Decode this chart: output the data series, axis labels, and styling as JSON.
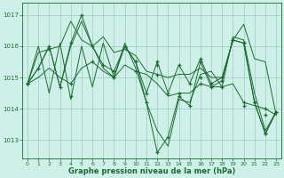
{
  "title": "Graphe pression niveau de la mer (hPa)",
  "bg_color": "#cff0e8",
  "grid_color": "#99ccbb",
  "line_color": "#1a6b30",
  "ylim": [
    1012.4,
    1017.4
  ],
  "yticks": [
    1013,
    1014,
    1015,
    1016,
    1017
  ],
  "xlim": [
    -0.5,
    23.5
  ],
  "xticks": [
    0,
    1,
    2,
    3,
    4,
    5,
    6,
    7,
    8,
    9,
    10,
    11,
    12,
    13,
    14,
    15,
    16,
    17,
    18,
    19,
    20,
    21,
    22,
    23
  ],
  "series": [
    [
      1014.8,
      1015.8,
      1015.9,
      1016.0,
      1016.8,
      1016.2,
      1016.0,
      1016.3,
      1015.8,
      1015.9,
      1015.7,
      1015.2,
      1015.1,
      1015.0,
      1015.1,
      1015.1,
      1015.3,
      1015.0,
      1015.0,
      1016.2,
      1016.7,
      1015.6,
      1015.5,
      1013.8
    ],
    [
      1014.8,
      1015.0,
      1015.3,
      1015.0,
      1014.8,
      1015.3,
      1015.5,
      1015.2,
      1015.0,
      1015.4,
      1015.2,
      1015.1,
      1014.8,
      1014.4,
      1014.5,
      1014.5,
      1014.8,
      1014.7,
      1014.7,
      1014.8,
      1014.2,
      1014.1,
      1014.0,
      1013.8
    ],
    [
      1014.8,
      1016.0,
      1014.5,
      1016.1,
      1014.3,
      1016.0,
      1014.7,
      1016.1,
      1015.0,
      1016.1,
      1015.3,
      1014.2,
      1013.3,
      1012.8,
      1014.3,
      1014.2,
      1015.1,
      1015.2,
      1014.7,
      1016.3,
      1016.2,
      1014.5,
      1013.3,
      1013.9
    ],
    [
      1014.8,
      1015.3,
      1016.0,
      1014.7,
      1016.1,
      1017.0,
      1016.0,
      1015.4,
      1015.2,
      1016.0,
      1015.5,
      1014.2,
      1012.6,
      1013.1,
      1014.4,
      1014.1,
      1015.5,
      1014.7,
      1014.9,
      1016.2,
      1016.1,
      1014.2,
      1013.2,
      1013.9
    ],
    [
      1014.8,
      1015.3,
      1016.0,
      1014.7,
      1016.0,
      1016.8,
      1016.0,
      1015.3,
      1015.0,
      1016.0,
      1015.5,
      1014.5,
      1015.5,
      1014.5,
      1015.4,
      1014.8,
      1015.6,
      1014.8,
      1015.0,
      1016.2,
      1016.1,
      1014.2,
      1013.2,
      1013.9
    ]
  ],
  "markers": [
    [
      [
        0,
        1014.8
      ],
      [
        1,
        1015.3
      ],
      [
        2,
        1016.0
      ],
      [
        3,
        1014.7
      ],
      [
        4,
        1016.1
      ],
      [
        5,
        1017.0
      ],
      [
        6,
        1016.0
      ],
      [
        7,
        1015.4
      ],
      [
        8,
        1015.2
      ],
      [
        9,
        1016.0
      ],
      [
        10,
        1015.5
      ],
      [
        11,
        1014.2
      ],
      [
        12,
        1012.6
      ],
      [
        13,
        1013.1
      ],
      [
        14,
        1014.4
      ],
      [
        15,
        1014.1
      ],
      [
        16,
        1015.5
      ],
      [
        17,
        1014.7
      ],
      [
        18,
        1014.9
      ],
      [
        19,
        1016.2
      ],
      [
        20,
        1016.1
      ],
      [
        21,
        1014.2
      ],
      [
        22,
        1013.2
      ],
      [
        23,
        1013.9
      ]
    ],
    [
      [
        0,
        1014.8
      ],
      [
        2,
        1015.9
      ],
      [
        4,
        1014.8
      ],
      [
        6,
        1015.5
      ],
      [
        8,
        1015.0
      ],
      [
        10,
        1015.2
      ],
      [
        12,
        1015.1
      ],
      [
        14,
        1014.5
      ],
      [
        16,
        1014.8
      ],
      [
        18,
        1014.7
      ],
      [
        20,
        1014.2
      ],
      [
        22,
        1014.0
      ]
    ],
    [
      [
        0,
        1014.8
      ],
      [
        4,
        1014.4
      ],
      [
        8,
        1015.0
      ],
      [
        12,
        1015.4
      ],
      [
        16,
        1015.0
      ],
      [
        20,
        1014.1
      ],
      [
        22,
        1013.8
      ]
    ],
    [
      [
        10,
        1015.5
      ],
      [
        11,
        1014.5
      ],
      [
        12,
        1015.5
      ],
      [
        13,
        1014.5
      ],
      [
        14,
        1015.4
      ],
      [
        15,
        1014.8
      ],
      [
        16,
        1015.6
      ],
      [
        17,
        1014.8
      ],
      [
        18,
        1015.0
      ],
      [
        19,
        1016.2
      ],
      [
        20,
        1016.1
      ],
      [
        21,
        1014.2
      ],
      [
        22,
        1013.2
      ],
      [
        23,
        1013.9
      ]
    ]
  ]
}
